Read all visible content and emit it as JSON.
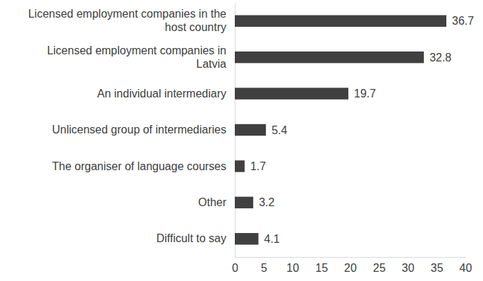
{
  "chart_data": {
    "type": "bar",
    "orientation": "horizontal",
    "categories": [
      "Licensed employment companies in the host country",
      "Licensed employment companies in Latvia",
      "An individual intermediary",
      "Unlicensed group of intermediaries",
      "The organiser of language courses",
      "Other",
      "Difficult to say"
    ],
    "values": [
      36.7,
      32.8,
      19.7,
      5.4,
      1.7,
      3.2,
      4.1
    ],
    "color": "#404040",
    "xlim": [
      0,
      40
    ],
    "xticks": [
      0,
      5,
      10,
      15,
      20,
      25,
      30,
      35,
      40
    ],
    "grid": false,
    "data_labels": true
  }
}
